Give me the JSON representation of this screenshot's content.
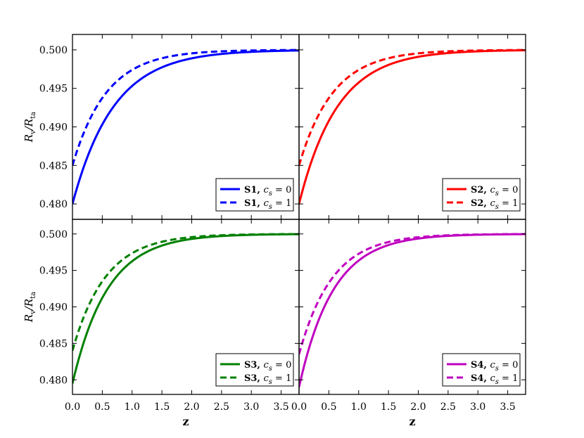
{
  "chart_data": [
    {
      "type": "line",
      "panel": "top-left",
      "xlabel": "",
      "ylabel": "R_v/R_ta",
      "xlim": [
        0,
        3.8
      ],
      "ylim": [
        0.478,
        0.502
      ],
      "xticks": [],
      "yticks": [
        "0.480",
        "0.485",
        "0.490",
        "0.495",
        "0.500"
      ],
      "color": "#0000ff",
      "legend_position": "lower-right",
      "series": [
        {
          "name": "S1, c_s = 0",
          "style": "solid",
          "y0": 0.48,
          "k": 1.45
        },
        {
          "name": "S1, c_s = 1",
          "style": "dashed",
          "y0": 0.485,
          "k": 1.75
        }
      ]
    },
    {
      "type": "line",
      "panel": "top-right",
      "xlabel": "",
      "ylabel": "",
      "xlim": [
        0,
        3.8
      ],
      "ylim": [
        0.478,
        0.502
      ],
      "xticks": [],
      "yticks": [],
      "color": "#ff0000",
      "legend_position": "lower-right",
      "series": [
        {
          "name": "S2, c_s = 0",
          "style": "solid",
          "y0": 0.48,
          "k": 1.55
        },
        {
          "name": "S2, c_s = 1",
          "style": "dashed",
          "y0": 0.485,
          "k": 1.75
        }
      ]
    },
    {
      "type": "line",
      "panel": "bottom-left",
      "xlabel": "z",
      "ylabel": "R_v/R_ta",
      "xlim": [
        0,
        3.8
      ],
      "ylim": [
        0.478,
        0.502
      ],
      "xticks": [
        "0.0",
        "0.5",
        "1.0",
        "1.5",
        "2.0",
        "2.5",
        "3.0",
        "3.5"
      ],
      "yticks": [
        "0.480",
        "0.485",
        "0.490",
        "0.495",
        "0.500"
      ],
      "color": "#008000",
      "legend_position": "lower-right",
      "series": [
        {
          "name": "S3, c_s = 0",
          "style": "solid",
          "y0": 0.4795,
          "k": 1.7
        },
        {
          "name": "S3, c_s = 1",
          "style": "dashed",
          "y0": 0.484,
          "k": 1.8
        }
      ]
    },
    {
      "type": "line",
      "panel": "bottom-right",
      "xlabel": "z",
      "ylabel": "",
      "xlim": [
        0,
        3.8
      ],
      "ylim": [
        0.478,
        0.502
      ],
      "xticks": [
        "0.0",
        "0.5",
        "1.0",
        "1.5",
        "2.0",
        "2.5",
        "3.0",
        "3.5"
      ],
      "yticks": [],
      "color": "#bf00bf",
      "legend_position": "lower-right",
      "series": [
        {
          "name": "S4, c_s = 0",
          "style": "solid",
          "y0": 0.479,
          "k": 1.75
        },
        {
          "name": "S4, c_s = 1",
          "style": "dashed",
          "y0": 0.4835,
          "k": 1.8
        }
      ]
    }
  ]
}
